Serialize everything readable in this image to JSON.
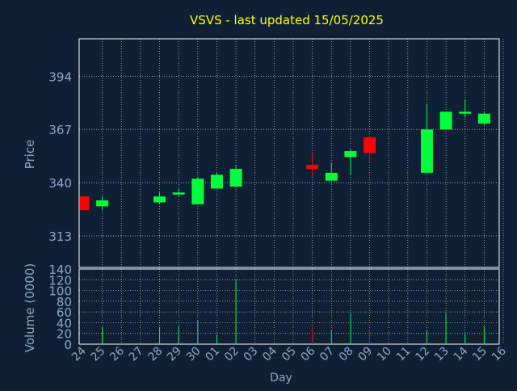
{
  "chart_data": {
    "type": "candlestick",
    "title": "VSVS - last updated 15/05/2025",
    "colors": {
      "background": "#0f2035",
      "title": "#ffff00",
      "axis_text": "#8fa8c8",
      "up": "#00ff3c",
      "down": "#ff0000",
      "grid": "#ffffff"
    },
    "grid": true,
    "price_panel": {
      "ylabel": "Price",
      "ylim": [
        297,
        413
      ],
      "yticks": [
        313,
        340,
        367,
        394
      ]
    },
    "volume_panel": {
      "ylabel": "Volume (0000)",
      "ylim": [
        0,
        140
      ],
      "yticks": [
        0,
        20,
        40,
        60,
        80,
        100,
        120,
        140
      ]
    },
    "xlabel": "Day",
    "x_ticks": [
      "24",
      "25",
      "26",
      "27",
      "28",
      "29",
      "30",
      "01",
      "02",
      "03",
      "04",
      "05",
      "06",
      "07",
      "08",
      "09",
      "10",
      "11",
      "12",
      "13",
      "14",
      "15",
      "16"
    ],
    "candles": [
      {
        "day": "24",
        "open": 333,
        "high": 333,
        "low": 326,
        "close": 326,
        "volume": 0
      },
      {
        "day": "25",
        "open": 328,
        "high": 333,
        "low": 326,
        "close": 331,
        "volume": 32
      },
      {
        "day": "28",
        "open": 330,
        "high": 335,
        "low": 329,
        "close": 333,
        "volume": 32
      },
      {
        "day": "29",
        "open": 334,
        "high": 337,
        "low": 333,
        "close": 335,
        "volume": 33
      },
      {
        "day": "30",
        "open": 329,
        "high": 343,
        "low": 329,
        "close": 342,
        "volume": 44
      },
      {
        "day": "01",
        "open": 337,
        "high": 345,
        "low": 337,
        "close": 344,
        "volume": 18
      },
      {
        "day": "02",
        "open": 338,
        "high": 349,
        "low": 338,
        "close": 347,
        "volume": 120
      },
      {
        "day": "06",
        "open": 349,
        "high": 355,
        "low": 343,
        "close": 347,
        "volume": 32
      },
      {
        "day": "07",
        "open": 341,
        "high": 350,
        "low": 341,
        "close": 345,
        "volume": 27
      },
      {
        "day": "08",
        "open": 353,
        "high": 357,
        "low": 344,
        "close": 356,
        "volume": 57
      },
      {
        "day": "09",
        "open": 363,
        "high": 364,
        "low": 350,
        "close": 355,
        "volume": 24
      },
      {
        "day": "12",
        "open": 345,
        "high": 380,
        "low": 345,
        "close": 367,
        "volume": 25
      },
      {
        "day": "13",
        "open": 367,
        "high": 376,
        "low": 367,
        "close": 376,
        "volume": 57
      },
      {
        "day": "14",
        "open": 375,
        "high": 382,
        "low": 373,
        "close": 376,
        "volume": 20
      },
      {
        "day": "15",
        "open": 370,
        "high": 376,
        "low": 369,
        "close": 375,
        "volume": 33
      }
    ]
  }
}
